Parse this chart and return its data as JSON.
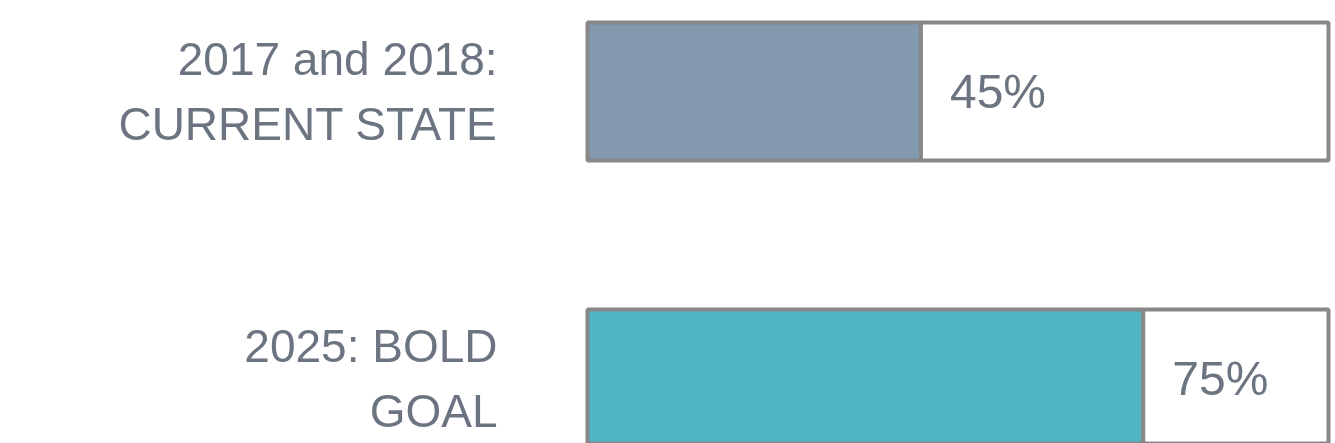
{
  "chart_data": {
    "type": "bar",
    "orientation": "horizontal",
    "stacked": true,
    "categories": [
      "2017 and 2018: CURRENT STATE",
      "2025: BOLD GOAL"
    ],
    "series": [
      {
        "colors": [
          "#8399ad",
          "#4fb4c3"
        ],
        "values": [
          45,
          75
        ],
        "value_labels": [
          "45%",
          "75%"
        ]
      },
      {
        "colors": [
          "#ffffff",
          "#ffffff"
        ],
        "values": [
          55,
          25
        ]
      }
    ],
    "xlim": [
      0,
      100
    ],
    "tick_labels": false
  }
}
